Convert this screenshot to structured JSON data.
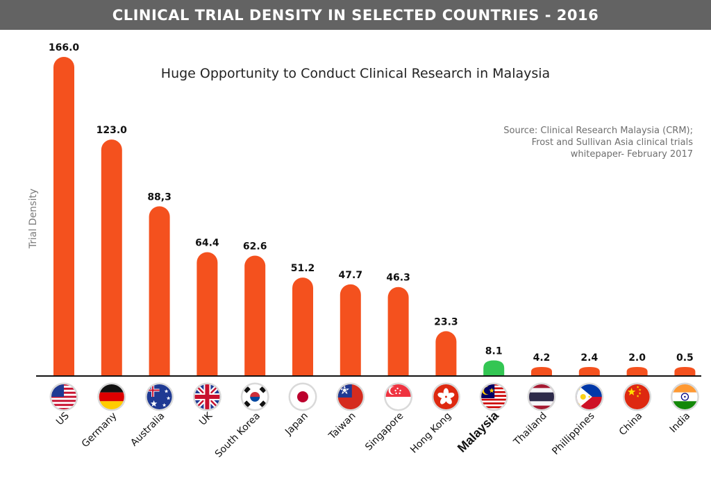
{
  "header": {
    "title": "CLINICAL TRIAL DENSITY IN SELECTED COUNTRIES - 2016"
  },
  "subtitle": "Huge Opportunity to Conduct Clinical Research in Malaysia",
  "source_lines": [
    "Source: Clinical Research Malaysia (CRM);",
    "Frost and Sullivan Asia clinical trials",
    "whitepaper- February 2017"
  ],
  "colors": {
    "bar": "#f4511e",
    "highlight": "#33c653",
    "header": "#636363",
    "axis": "#111111"
  },
  "chart_data": {
    "type": "bar",
    "title": "CLINICAL TRIAL DENSITY IN SELECTED COUNTRIES - 2016",
    "ylabel": "Trial Density",
    "xlabel": "",
    "ylim": [
      0,
      166
    ],
    "grid": false,
    "categories": [
      "US",
      "Germany",
      "Australia",
      "UK",
      "South Korea",
      "Japan",
      "Taiwan",
      "Singapore",
      "Hong Kong",
      "Malaysia",
      "Thailand",
      "Phillippines",
      "China",
      "India"
    ],
    "values": [
      166.0,
      123.0,
      88.3,
      64.4,
      62.6,
      51.2,
      47.7,
      46.3,
      23.3,
      8.1,
      4.2,
      2.4,
      2.0,
      0.5
    ],
    "value_labels": [
      "166.0",
      "123.0",
      "88,3",
      "64.4",
      "62.6",
      "51.2",
      "47.7",
      "46.3",
      "23.3",
      "8.1",
      "4.2",
      "2.4",
      "2.0",
      "0.5"
    ],
    "highlight": "Malaysia",
    "flag_icons": [
      "us-flag-icon",
      "germany-flag-icon",
      "australia-flag-icon",
      "uk-flag-icon",
      "south-korea-flag-icon",
      "japan-flag-icon",
      "taiwan-flag-icon",
      "singapore-flag-icon",
      "hong-kong-flag-icon",
      "malaysia-flag-icon",
      "thailand-flag-icon",
      "philippines-flag-icon",
      "china-flag-icon",
      "india-flag-icon"
    ]
  }
}
